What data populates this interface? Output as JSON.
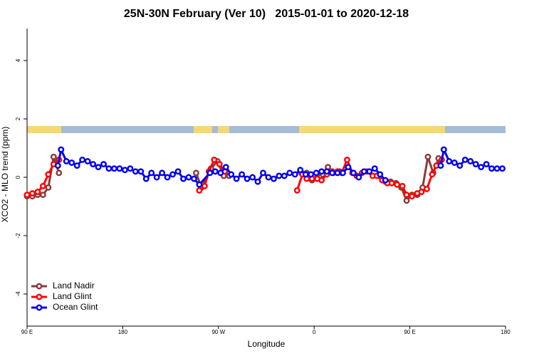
{
  "chart_data": {
    "type": "line",
    "title": "25N-30N February (Ver 10)   2015-01-01 to 2020-12-18",
    "x_label": "Longitude",
    "y_label": "XCO2 - MLO trend (ppm)",
    "xlim": [
      90,
      540
    ],
    "ylim": [
      -5.1,
      5.1
    ],
    "xticks": [
      {
        "value": 90,
        "label": "90 E"
      },
      180,
      {
        "value": 270,
        "label": "90 W"
      },
      {
        "value": 360,
        "label": "0"
      },
      {
        "value": 450,
        "label": "90 E"
      },
      180
    ],
    "yticks": [
      -4,
      -2,
      0,
      2,
      4
    ],
    "legend": "bottom-left",
    "series": [
      {
        "name": "Land Nadir",
        "color": "#8b3a3a",
        "x": [
          90,
          95,
          100,
          105,
          110,
          115,
          120,
          185,
          249,
          254,
          263,
          269,
          275,
          280,
          310,
          348,
          353,
          358,
          363,
          368,
          373,
          378,
          384,
          400,
          427,
          432,
          437,
          442,
          447,
          452,
          457,
          462,
          467,
          472,
          477
        ],
        "values": [
          -0.65,
          -0.65,
          -0.6,
          -0.6,
          -0.35,
          0.7,
          0.15,
          null,
          0.15,
          -0.35,
          0.3,
          0.55,
          0.05,
          0.05,
          null,
          0.15,
          0.15,
          -0.1,
          0.1,
          0.1,
          0.35,
          0.15,
          0.2,
          null,
          -0.15,
          -0.15,
          -0.2,
          -0.35,
          -0.8,
          -0.6,
          -0.6,
          -0.35,
          0.7,
          0.15,
          0.65
        ]
      },
      {
        "name": "Land Glint",
        "color": "#ff0000",
        "x": [
          90,
          95,
          100,
          105,
          110,
          115,
          120,
          185,
          252,
          257,
          261,
          266,
          271,
          276,
          310,
          344,
          349,
          353,
          358,
          363,
          367,
          372,
          377,
          382,
          386,
          391,
          396,
          400,
          405,
          410,
          415,
          419,
          424,
          429,
          433,
          438,
          443,
          447,
          452,
          457,
          461,
          466,
          471,
          475,
          480
        ],
        "values": [
          -0.6,
          -0.55,
          -0.5,
          -0.3,
          0.1,
          0.45,
          0.6,
          null,
          -0.45,
          -0.3,
          0.2,
          0.6,
          0.45,
          0.2,
          null,
          -0.45,
          0.1,
          -0.05,
          -0.05,
          -0.05,
          -0.1,
          0.1,
          0.2,
          0.2,
          0.15,
          0.6,
          0.15,
          0.05,
          0.15,
          0.2,
          0.05,
          0.05,
          -0.1,
          -0.2,
          -0.2,
          -0.25,
          -0.3,
          -0.6,
          -0.65,
          -0.55,
          -0.5,
          -0.4,
          0.1,
          0.4,
          0.6
        ]
      },
      {
        "name": "Ocean Glint",
        "color": "#0000ee",
        "x": [
          119,
          122,
          127,
          132,
          137,
          142,
          147,
          152,
          157,
          162,
          167,
          172,
          177,
          182,
          187,
          192,
          197,
          202,
          207,
          212,
          217,
          222,
          227,
          232,
          237,
          242,
          247,
          252,
          262,
          267,
          272,
          277,
          282,
          287,
          292,
          297,
          302,
          307,
          312,
          317,
          322,
          327,
          332,
          337,
          342,
          347,
          352,
          357,
          362,
          367,
          372,
          377,
          382,
          387,
          392,
          397,
          402,
          407,
          412,
          417,
          422,
          427,
          450,
          479,
          482,
          487,
          492,
          497,
          502,
          507,
          512,
          517,
          522,
          527,
          532,
          537
        ],
        "values": [
          0.4,
          0.95,
          0.55,
          0.5,
          0.4,
          0.6,
          0.55,
          0.45,
          0.35,
          0.45,
          0.3,
          0.3,
          0.3,
          0.25,
          0.3,
          0.2,
          0.2,
          -0.05,
          0.15,
          0.0,
          0.15,
          0.0,
          0.1,
          0.2,
          -0.05,
          0.0,
          -0.05,
          -0.25,
          0.15,
          0.2,
          0.15,
          0.35,
          0.1,
          -0.05,
          0.1,
          -0.05,
          0.0,
          -0.15,
          0.15,
          0.0,
          -0.05,
          0.05,
          0.05,
          0.15,
          0.1,
          0.25,
          0.1,
          0.1,
          0.15,
          0.2,
          0.2,
          0.15,
          0.15,
          0.15,
          0.35,
          0.15,
          0.0,
          0.2,
          0.2,
          0.3,
          0.1,
          -0.1,
          null,
          0.4,
          0.95,
          0.55,
          0.5,
          0.4,
          0.6,
          0.55,
          0.45,
          0.35,
          0.45,
          0.3,
          0.3,
          0.3
        ]
      }
    ]
  }
}
